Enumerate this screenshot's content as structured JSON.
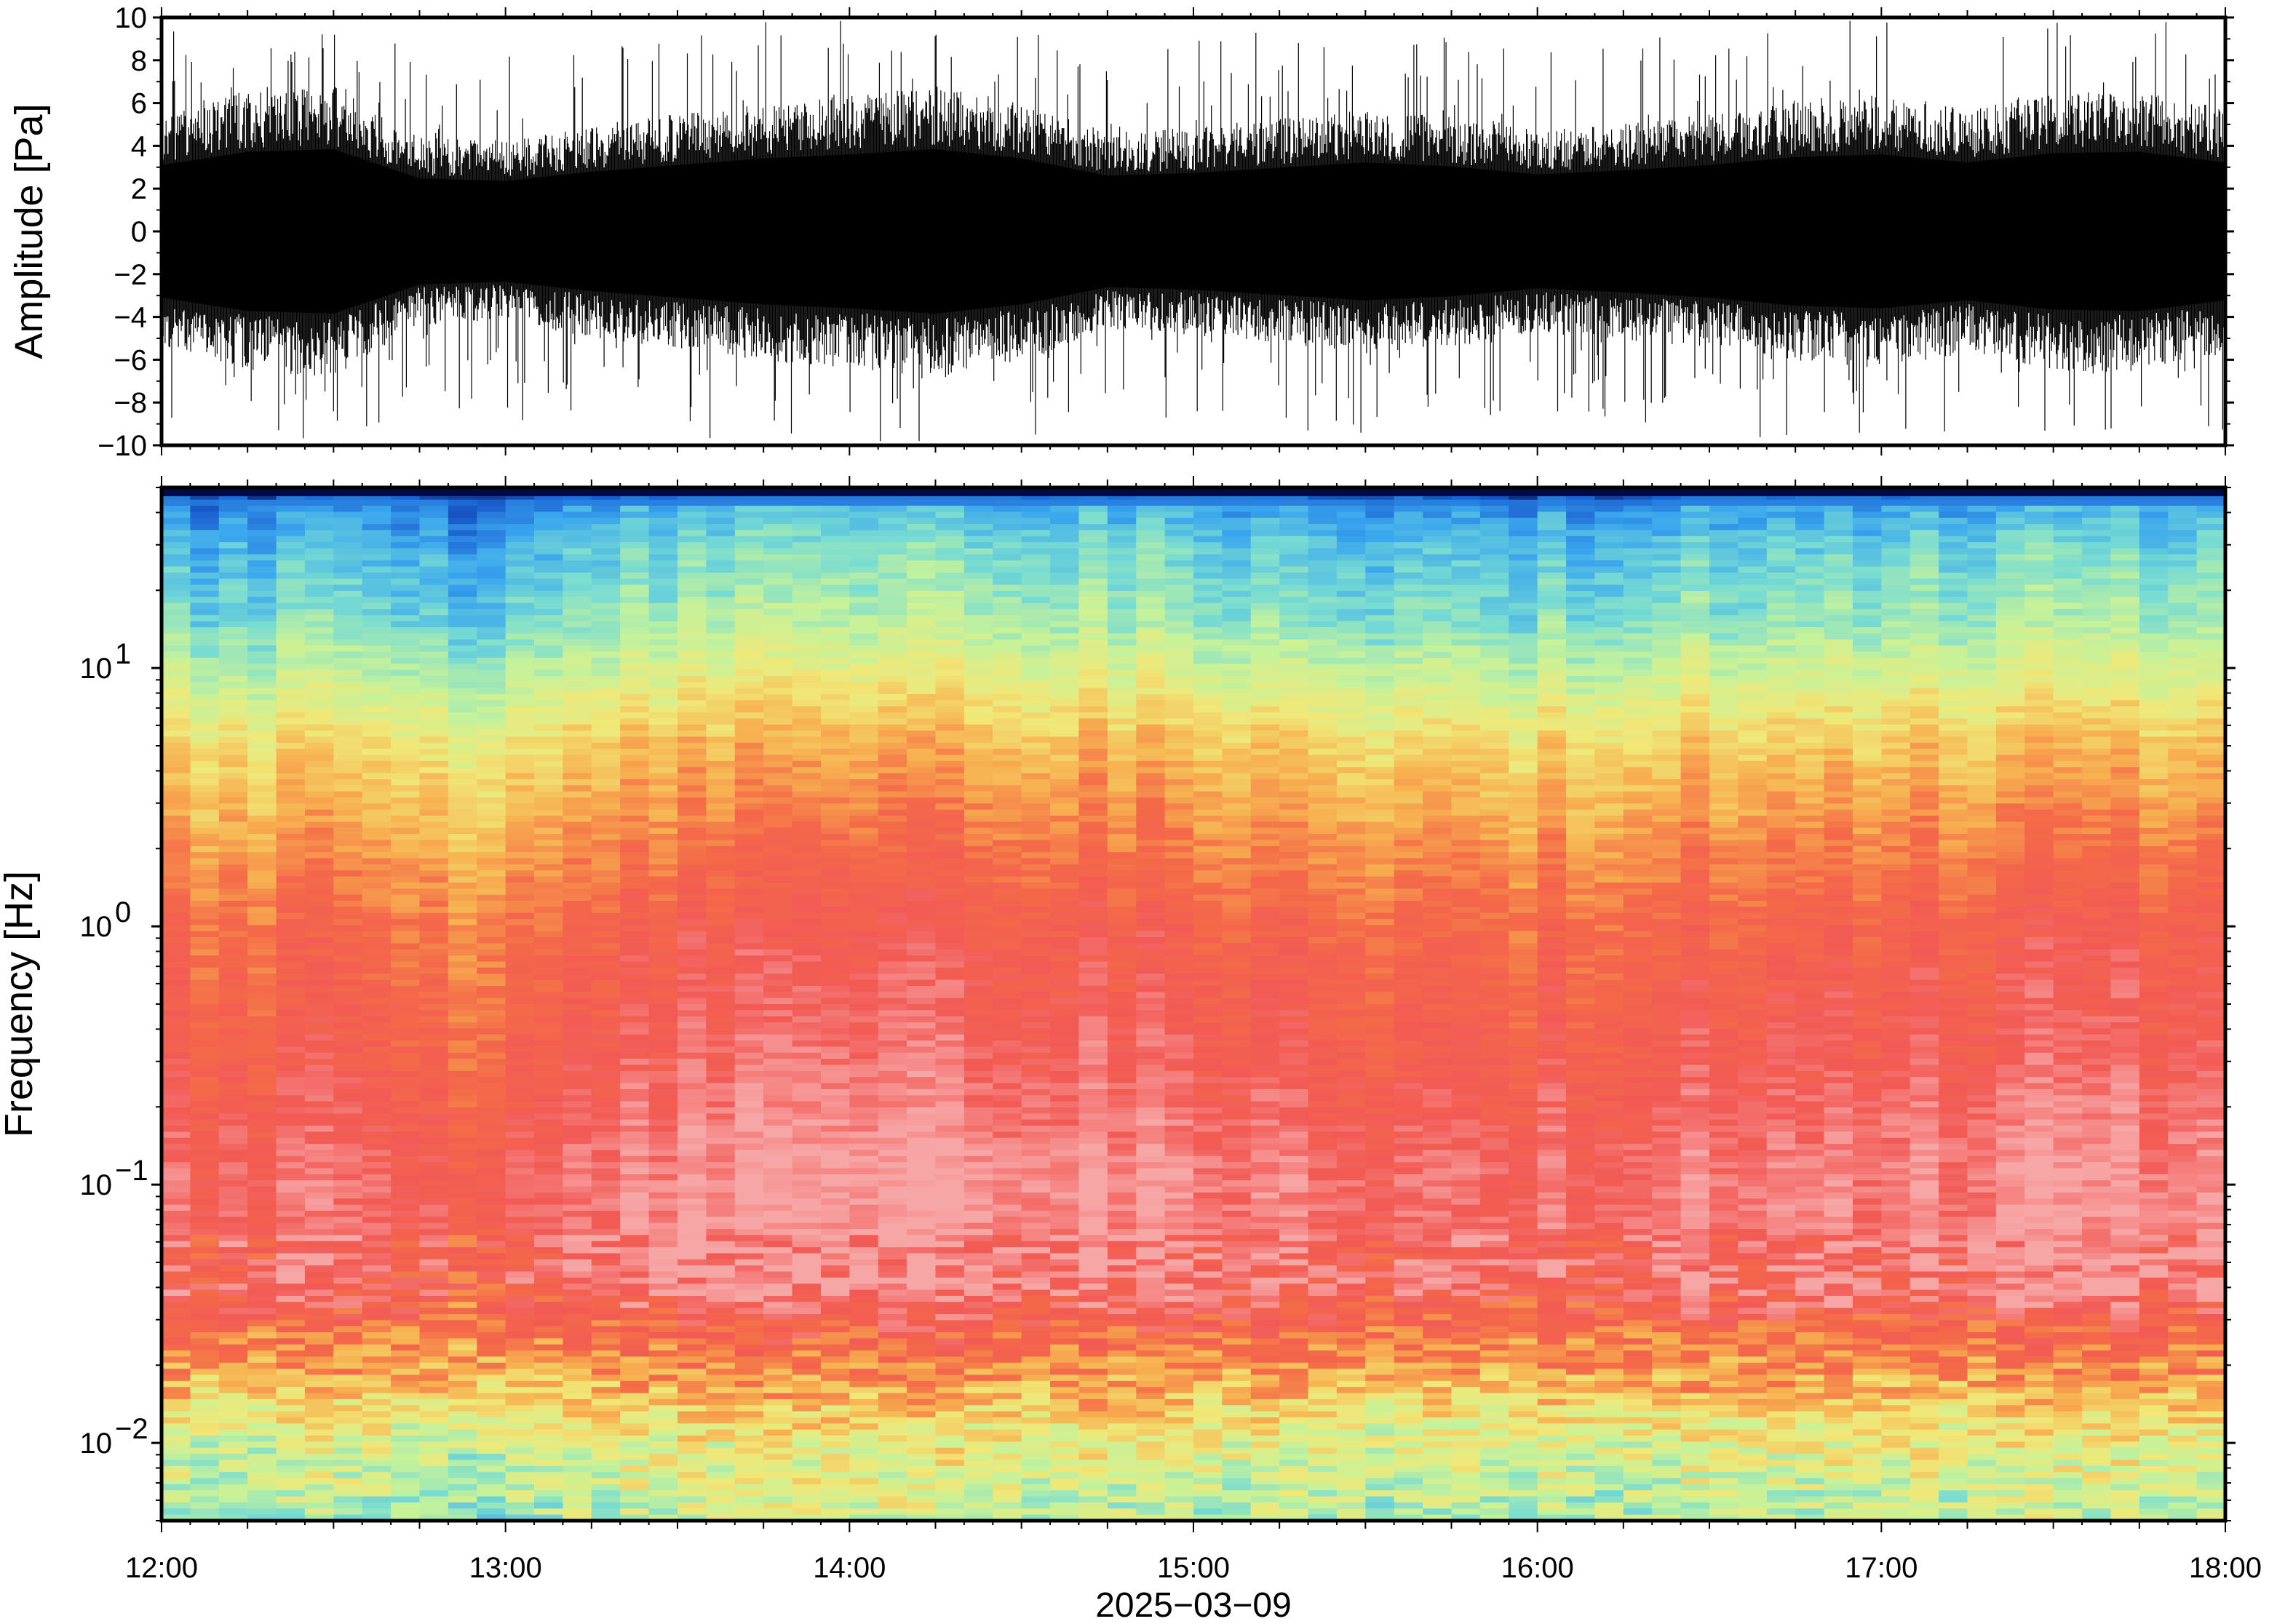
{
  "chart_data": [
    {
      "type": "line",
      "panel": "waveform",
      "ylabel": "Amplitude [Pa]",
      "ylim": [
        -10,
        10
      ],
      "yticks": [
        -10,
        -8,
        -6,
        -4,
        -2,
        0,
        2,
        4,
        6,
        8,
        10
      ],
      "ytick_labels": [
        "−10",
        "−8",
        "−6",
        "−4",
        "−2",
        "0",
        "2",
        "4",
        "6",
        "8",
        "10"
      ],
      "xlim": [
        "12:00",
        "18:00"
      ],
      "envelope": {
        "hours": [
          12.0,
          12.25,
          12.5,
          12.75,
          13.0,
          13.25,
          13.5,
          13.75,
          14.0,
          14.25,
          14.5,
          14.75,
          15.0,
          15.25,
          15.5,
          15.75,
          16.0,
          16.25,
          16.5,
          16.75,
          17.0,
          17.25,
          17.5,
          17.75,
          18.0
        ],
        "typical_peak": [
          5.0,
          6.0,
          6.2,
          4.0,
          3.8,
          4.5,
          5.0,
          5.5,
          5.8,
          6.2,
          5.5,
          4.2,
          4.4,
          4.8,
          5.2,
          4.9,
          4.3,
          4.6,
          5.0,
          5.6,
          5.8,
          5.2,
          5.9,
          6.0,
          5.2
        ],
        "max_spike": [
          9.9,
          9.8,
          9.7,
          8.5,
          8.8,
          9.0,
          9.6,
          9.9,
          10.0,
          9.8,
          9.6,
          9.0,
          9.0,
          9.4,
          9.5,
          9.2,
          8.6,
          9.1,
          9.4,
          9.8,
          9.9,
          9.5,
          9.8,
          9.9,
          9.7
        ]
      },
      "line_color": "#000000"
    },
    {
      "type": "heatmap",
      "panel": "spectrogram",
      "ylabel": "Frequency [Hz]",
      "yscale": "log",
      "ylim": [
        0.005,
        50
      ],
      "yticks": [
        0.01,
        0.1,
        1,
        10
      ],
      "ytick_labels": [
        {
          "base": "10",
          "exp": "−2"
        },
        {
          "base": "10",
          "exp": "−1"
        },
        {
          "base": "10",
          "exp": "0"
        },
        {
          "base": "10",
          "exp": "1"
        }
      ],
      "xlabel": "2025−03−09",
      "xlim": [
        "12:00",
        "18:00"
      ],
      "xticks": [
        "12:00",
        "13:00",
        "14:00",
        "15:00",
        "16:00",
        "17:00",
        "18:00"
      ],
      "colormap": [
        "#000a4a",
        "#1a5fd0",
        "#3aa6ee",
        "#78dcd2",
        "#c6f29a",
        "#f0e878",
        "#f7b050",
        "#f46a48",
        "#f25a55",
        "#f7a6a6"
      ],
      "profile_hz": [
        50,
        45,
        30,
        15,
        10,
        5,
        2,
        1,
        0.3,
        0.1,
        0.04,
        0.02,
        0.01,
        0.005
      ],
      "profile_level": [
        0.0,
        0.18,
        0.28,
        0.36,
        0.45,
        0.6,
        0.72,
        0.8,
        0.86,
        0.93,
        0.9,
        0.7,
        0.5,
        0.42
      ],
      "hour_offsets": {
        "hours": [
          12.0,
          12.5,
          12.9,
          13.3,
          13.6,
          14.0,
          14.5,
          15.0,
          15.5,
          16.0,
          16.5,
          17.0,
          17.5,
          18.0
        ],
        "offset": [
          -0.02,
          -0.01,
          -0.06,
          0.04,
          0.05,
          0.06,
          0.06,
          0.04,
          0.0,
          -0.01,
          0.02,
          0.04,
          0.05,
          0.03
        ]
      }
    }
  ]
}
